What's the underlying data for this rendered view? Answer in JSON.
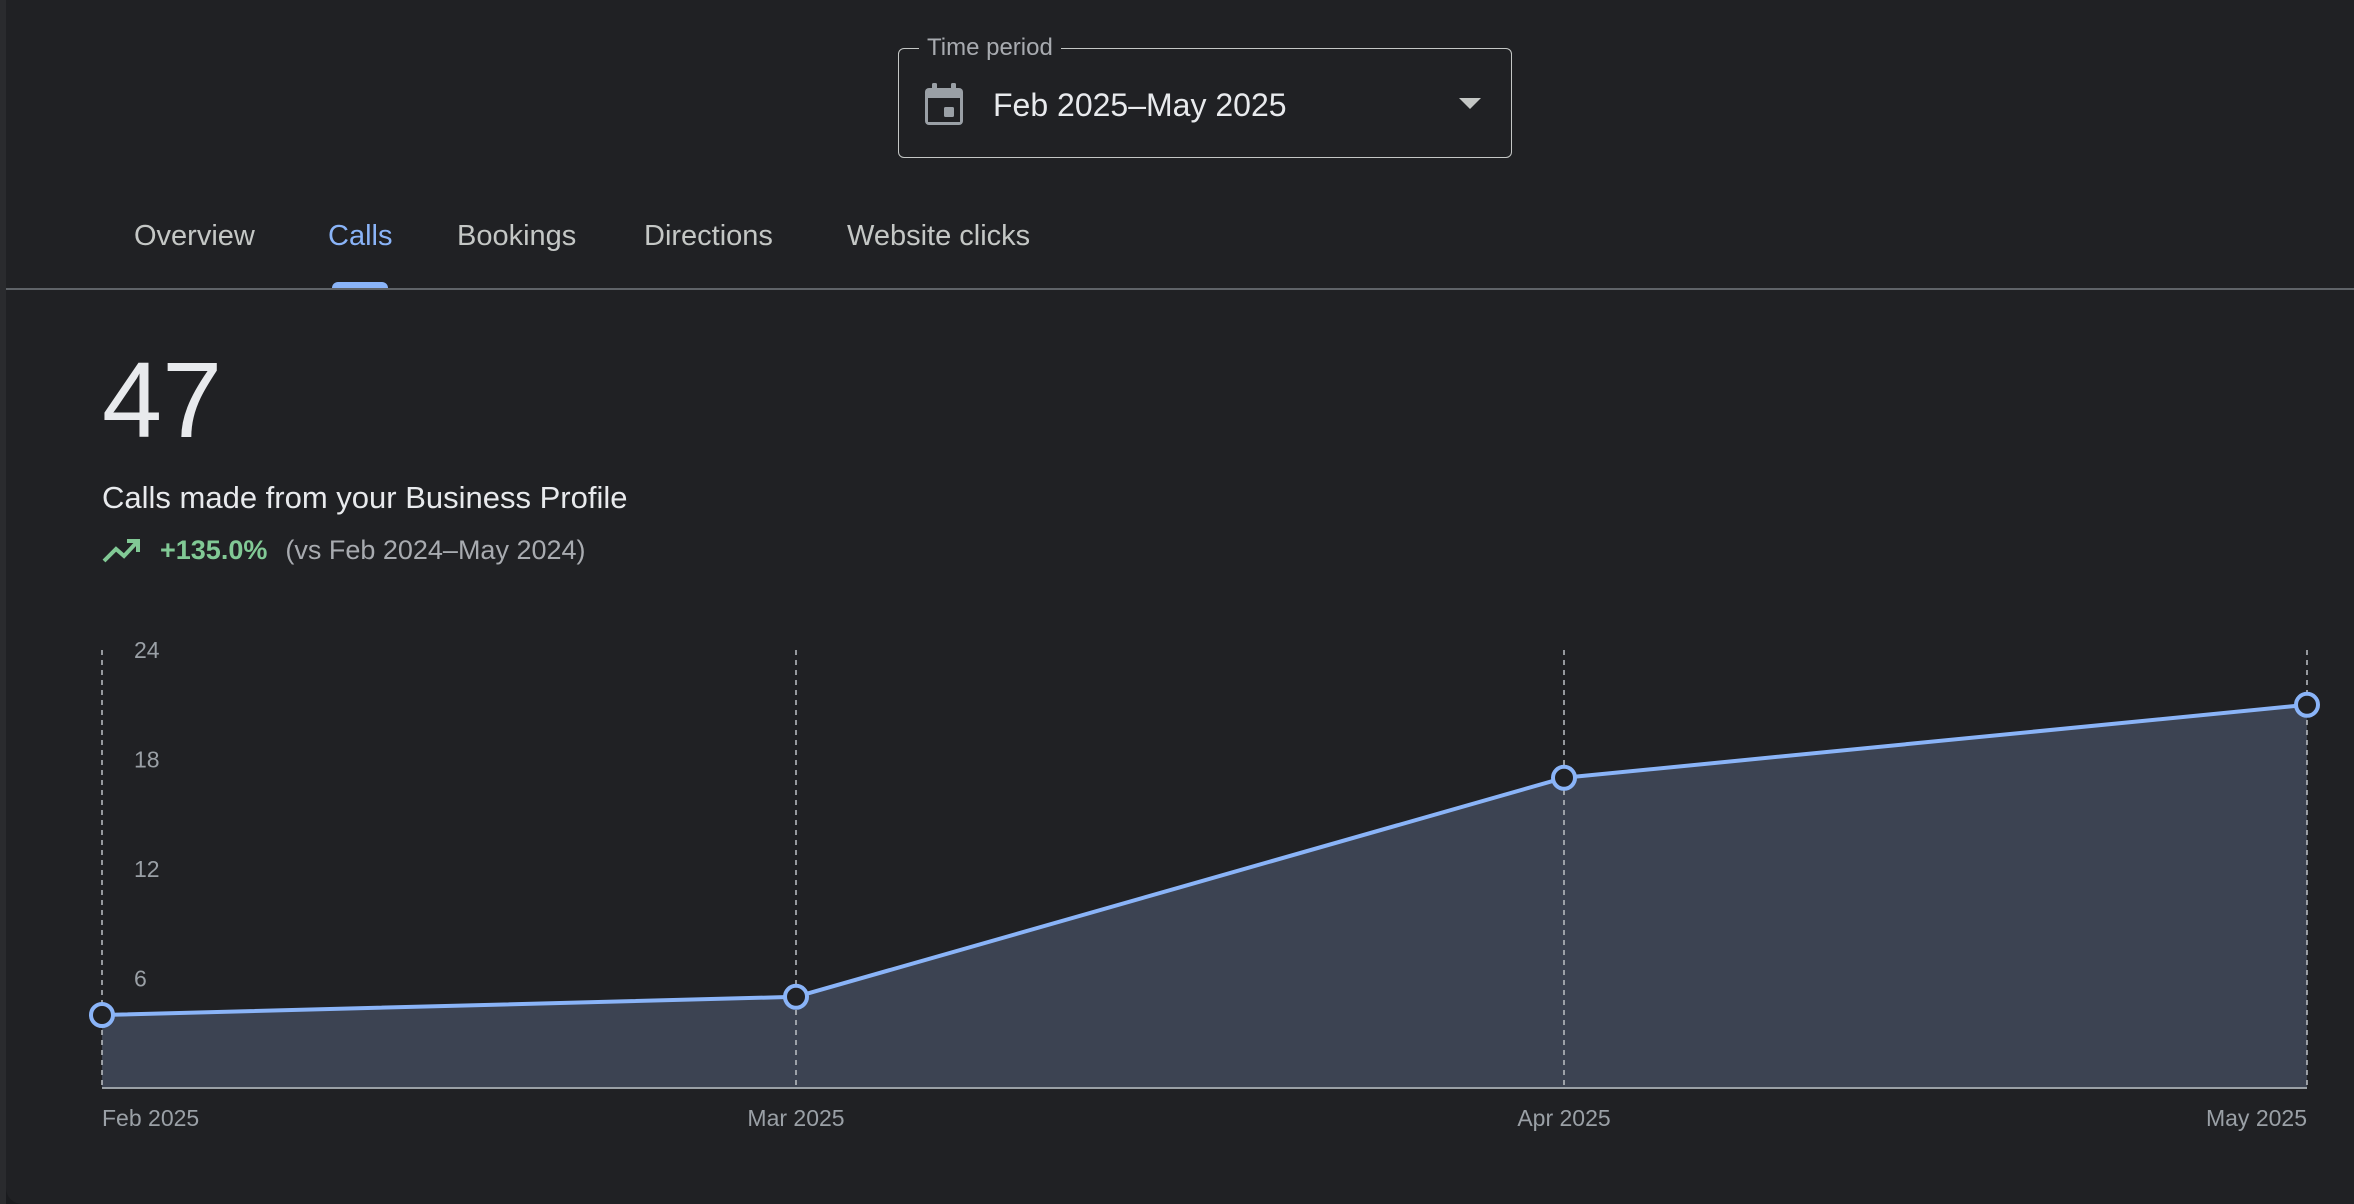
{
  "time_period": {
    "legend": "Time period",
    "value": "Feb 2025–May 2025",
    "icon": "calendar-icon"
  },
  "tabs": [
    {
      "label": "Overview",
      "active": false
    },
    {
      "label": "Calls",
      "active": true
    },
    {
      "label": "Bookings",
      "active": false
    },
    {
      "label": "Directions",
      "active": false
    },
    {
      "label": "Website clicks",
      "active": false
    }
  ],
  "metric": {
    "value": "47",
    "description": "Calls made from your Business Profile",
    "change": "+135.0%",
    "comparison": "(vs Feb 2024–May 2024)",
    "trend_icon": "trending-up-icon",
    "trend_color": "#81c995"
  },
  "colors": {
    "accent": "#8ab4f8",
    "area_fill": "#3c4352",
    "background": "#202124"
  },
  "chart_data": {
    "type": "area",
    "categories": [
      "Feb 2025",
      "Mar 2025",
      "Apr 2025",
      "May 2025"
    ],
    "series": [
      {
        "values": [
          4,
          5,
          17,
          21
        ]
      }
    ],
    "yticks": [
      6,
      12,
      18,
      24
    ],
    "ylim": [
      0,
      24
    ],
    "grid": "vertical dashed lines at each category",
    "markers": "hollow circles"
  }
}
